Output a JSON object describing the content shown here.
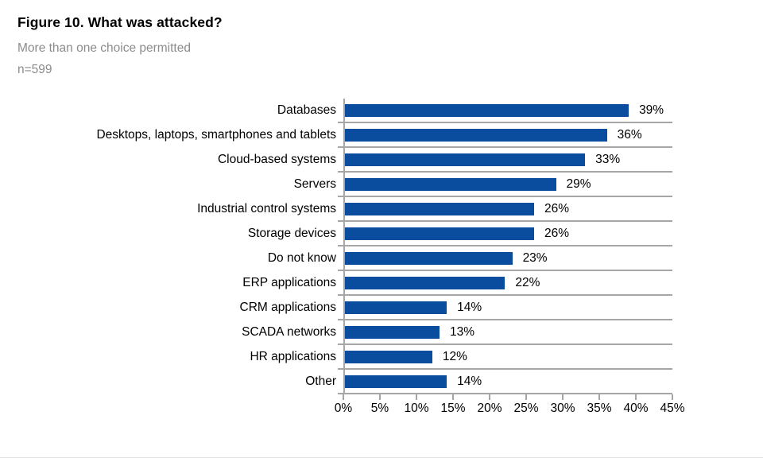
{
  "header": {
    "title": "Figure 10. What was attacked?",
    "subtitle": "More than one choice permitted",
    "sample": "n=599"
  },
  "chart_data": {
    "type": "bar",
    "orientation": "horizontal",
    "title": "Figure 10. What was attacked?",
    "subtitle": "More than one choice permitted",
    "sample_size": "n=599",
    "categories": [
      "Databases",
      "Desktops, laptops, smartphones and tablets",
      "Cloud-based systems",
      "Servers",
      "Industrial control systems",
      "Storage devices",
      "Do not know",
      "ERP applications",
      "CRM applications",
      "SCADA networks",
      "HR applications",
      "Other"
    ],
    "values": [
      39,
      36,
      33,
      29,
      26,
      26,
      23,
      22,
      14,
      13,
      12,
      14
    ],
    "value_labels": [
      "39%",
      "36%",
      "33%",
      "29%",
      "26%",
      "26%",
      "23%",
      "22%",
      "14%",
      "13%",
      "12%",
      "14%"
    ],
    "xlabel": "",
    "ylabel": "",
    "xlim": [
      0,
      45
    ],
    "xtick_labels": [
      "0%",
      "5%",
      "10%",
      "15%",
      "20%",
      "25%",
      "30%",
      "35%",
      "40%",
      "45%"
    ],
    "grid": "horizontal-row-separators",
    "legend": "none",
    "bar_color": "#0a4d9e",
    "grid_color": "#a6a6a6"
  }
}
